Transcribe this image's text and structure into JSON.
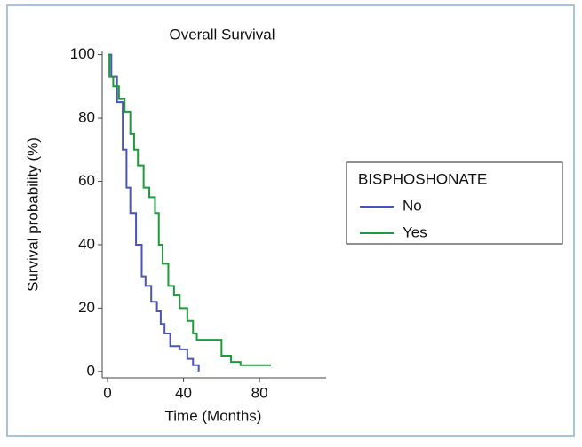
{
  "chart_data": {
    "type": "line",
    "step": true,
    "title": "Overall Survival",
    "x_label": "Time (Months)",
    "y_label": "Survival probability (%)",
    "xlim": [
      0,
      115
    ],
    "xticks": [
      0,
      40,
      80
    ],
    "ylim": [
      -2,
      101
    ],
    "yticks": [
      0,
      20,
      40,
      60,
      80,
      100
    ],
    "legend_title": "BISPHOSHONATE",
    "legend": "right",
    "series": [
      {
        "name": "No",
        "color": "#4b55b8",
        "x": [
          0,
          2,
          5,
          8,
          10,
          12,
          15,
          18,
          20,
          23,
          26,
          28,
          30,
          33,
          38,
          42,
          45,
          48
        ],
        "values": [
          100,
          93,
          85,
          70,
          58,
          50,
          40,
          30,
          27,
          22,
          19,
          15,
          12,
          8,
          7,
          4,
          2,
          0
        ]
      },
      {
        "name": "Yes",
        "color": "#1e9a3c",
        "x": [
          0,
          1,
          3,
          6,
          9,
          12,
          14,
          16,
          19,
          22,
          25,
          27,
          29,
          32,
          35,
          38,
          42,
          45,
          47,
          60,
          65,
          70,
          86
        ],
        "values": [
          100,
          93,
          90,
          86,
          82,
          75,
          70,
          65,
          58,
          55,
          50,
          40,
          34,
          27,
          24,
          20,
          16,
          12,
          10,
          5,
          3,
          2,
          2
        ]
      }
    ]
  }
}
